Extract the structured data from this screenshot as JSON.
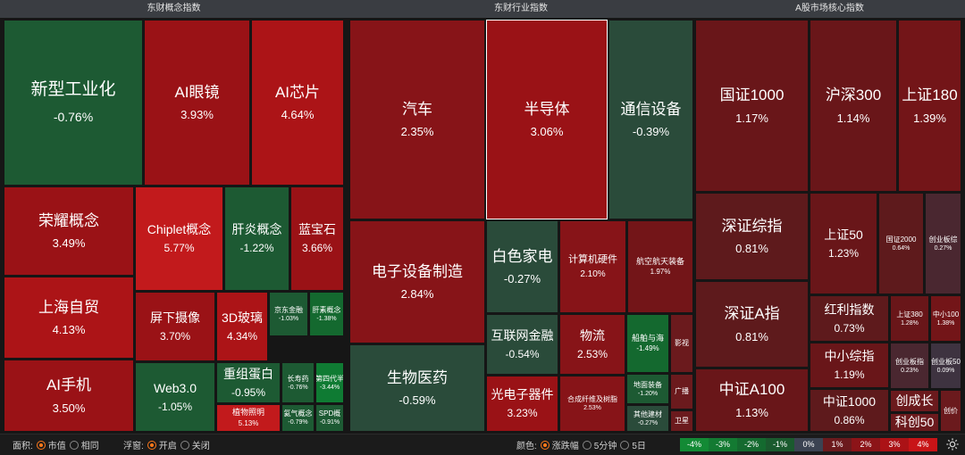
{
  "sections": [
    {
      "title": "东财概念指数"
    },
    {
      "title": "东财行业指数"
    },
    {
      "title": "A股市场核心指数"
    }
  ],
  "tiles": [
    {
      "name": "新型工业化",
      "value": "-0.76%"
    },
    {
      "name": "AI眼镜",
      "value": "3.93%"
    },
    {
      "name": "AI芯片",
      "value": "4.64%"
    },
    {
      "name": "荣耀概念",
      "value": "3.49%"
    },
    {
      "name": "Chiplet概念",
      "value": "5.77%"
    },
    {
      "name": "肝炎概念",
      "value": "-1.22%"
    },
    {
      "name": "蓝宝石",
      "value": "3.66%"
    },
    {
      "name": "上海自贸",
      "value": "4.13%"
    },
    {
      "name": "屏下摄像",
      "value": "3.70%"
    },
    {
      "name": "3D玻璃",
      "value": "4.34%"
    },
    {
      "name": "京东金融",
      "value": "-1.03%"
    },
    {
      "name": "肝素概念",
      "value": "-1.38%"
    },
    {
      "name": "AI手机",
      "value": "3.50%"
    },
    {
      "name": "Web3.0",
      "value": "-1.05%"
    },
    {
      "name": "重组蛋白",
      "value": "-0.95%"
    },
    {
      "name": "长寿药",
      "value": "-0.76%"
    },
    {
      "name": "第四代半",
      "value": "-3.44%"
    },
    {
      "name": "植物照明",
      "value": "5.13%"
    },
    {
      "name": "氦气概念",
      "value": "-0.79%"
    },
    {
      "name": "SPD概",
      "value": "-0.91%"
    },
    {
      "name": "汽车",
      "value": "2.35%"
    },
    {
      "name": "半导体",
      "value": "3.06%"
    },
    {
      "name": "通信设备",
      "value": "-0.39%"
    },
    {
      "name": "电子设备制造",
      "value": "2.84%"
    },
    {
      "name": "白色家电",
      "value": "-0.27%"
    },
    {
      "name": "计算机硬件",
      "value": "2.10%"
    },
    {
      "name": "航空航天装备",
      "value": "1.97%"
    },
    {
      "name": "生物医药",
      "value": "-0.59%"
    },
    {
      "name": "互联网金融",
      "value": "-0.54%"
    },
    {
      "name": "物流",
      "value": "2.53%"
    },
    {
      "name": "船舶与海",
      "value": "-1.49%"
    },
    {
      "name": "影视",
      "value": ""
    },
    {
      "name": "光电子器件",
      "value": "3.23%"
    },
    {
      "name": "合成纤维及树脂",
      "value": "2.53%"
    },
    {
      "name": "地面装备",
      "value": "-1.20%"
    },
    {
      "name": "广播",
      "value": ""
    },
    {
      "name": "其他建材",
      "value": "-0.27%"
    },
    {
      "name": "卫星",
      "value": ""
    },
    {
      "name": "国证1000",
      "value": "1.17%"
    },
    {
      "name": "沪深300",
      "value": "1.14%"
    },
    {
      "name": "上证180",
      "value": "1.39%"
    },
    {
      "name": "深证综指",
      "value": "0.81%"
    },
    {
      "name": "上证50",
      "value": "1.23%"
    },
    {
      "name": "国证2000",
      "value": "0.64%"
    },
    {
      "name": "创业板综",
      "value": "0.27%"
    },
    {
      "name": "深证A指",
      "value": "0.81%"
    },
    {
      "name": "红利指数",
      "value": "0.73%"
    },
    {
      "name": "上证380",
      "value": "1.28%"
    },
    {
      "name": "中小100",
      "value": "1.38%"
    },
    {
      "name": "中小综指",
      "value": "1.19%"
    },
    {
      "name": "创业板指",
      "value": "0.23%"
    },
    {
      "name": "创业板50",
      "value": "0.09%"
    },
    {
      "name": "中证A100",
      "value": "1.13%"
    },
    {
      "name": "中证1000",
      "value": "0.86%"
    },
    {
      "name": "创成长",
      "value": ""
    },
    {
      "name": "创价",
      "value": ""
    },
    {
      "name": "科创50",
      "value": ""
    }
  ],
  "toolbar": {
    "area_label": "面积:",
    "area_options": [
      "市值",
      "相同"
    ],
    "area_selected": "市值",
    "float_label": "浮窗:",
    "float_options": [
      "开启",
      "关闭"
    ],
    "float_selected": "开启",
    "color_label": "颜色:",
    "color_options": [
      "涨跌幅",
      "5分钟",
      "5日"
    ],
    "color_selected": "涨跌幅",
    "legend": [
      {
        "label": "-4%",
        "color": "#138a35"
      },
      {
        "label": "-3%",
        "color": "#137a32"
      },
      {
        "label": "-2%",
        "color": "#146a2f"
      },
      {
        "label": "-1%",
        "color": "#1a5a2e"
      },
      {
        "label": "0%",
        "color": "#3b4352"
      },
      {
        "label": "1%",
        "color": "#6b1a1d"
      },
      {
        "label": "2%",
        "color": "#8c1418"
      },
      {
        "label": "3%",
        "color": "#ab1216"
      },
      {
        "label": "4%",
        "color": "#c81417"
      }
    ],
    "settings_icon": "gear-icon"
  }
}
